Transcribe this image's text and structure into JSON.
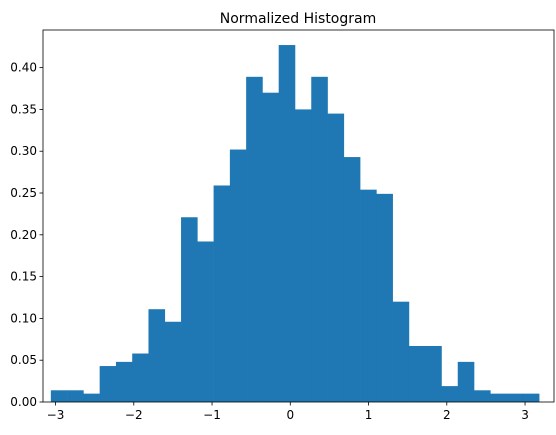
{
  "chart_data": {
    "type": "bar",
    "title": "Normalized Histogram",
    "xlabel": "",
    "ylabel": "",
    "xlim": [
      -3.16,
      3.37
    ],
    "ylim": [
      0,
      0.445
    ],
    "bar_color": "#1f77b4",
    "grid": false,
    "bin_edges": [
      -3.06,
      -2.852,
      -2.644,
      -2.436,
      -2.228,
      -2.02,
      -1.812,
      -1.604,
      -1.396,
      -1.188,
      -0.98,
      -0.772,
      -0.564,
      -0.356,
      -0.148,
      0.06,
      0.268,
      0.476,
      0.684,
      0.892,
      1.1,
      1.308,
      1.516,
      1.724,
      1.932,
      2.14,
      2.348,
      2.556,
      2.764,
      2.972,
      3.18
    ],
    "values": [
      0.014,
      0.014,
      0.01,
      0.043,
      0.048,
      0.058,
      0.111,
      0.096,
      0.221,
      0.192,
      0.259,
      0.302,
      0.389,
      0.37,
      0.427,
      0.35,
      0.389,
      0.345,
      0.293,
      0.254,
      0.249,
      0.12,
      0.067,
      0.067,
      0.019,
      0.048,
      0.014,
      0.01,
      0.01,
      0.01
    ],
    "x_ticks": [
      -3,
      -2,
      -1,
      0,
      1,
      2,
      3
    ],
    "x_tick_labels": [
      "−3",
      "−2",
      "−1",
      "0",
      "1",
      "2",
      "3"
    ],
    "y_ticks": [
      0.0,
      0.05,
      0.1,
      0.15,
      0.2,
      0.25,
      0.3,
      0.35,
      0.4
    ],
    "y_tick_labels": [
      "0.00",
      "0.05",
      "0.10",
      "0.15",
      "0.20",
      "0.25",
      "0.30",
      "0.35",
      "0.40"
    ]
  }
}
